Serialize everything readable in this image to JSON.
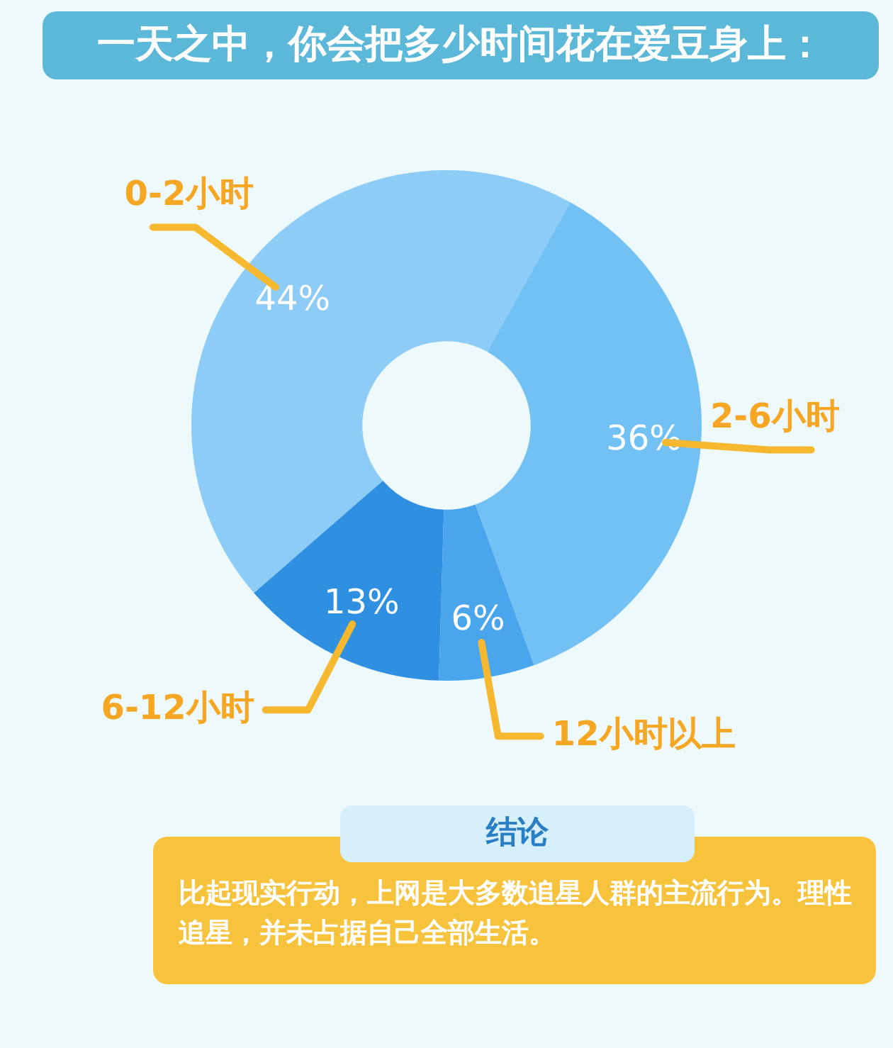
{
  "chart_data": {
    "type": "donut",
    "title": "一天之中，你会把多少时间花在爱豆身上：",
    "categories": [
      "0-2小时",
      "2-6小时",
      "12小时以上",
      "6-12小时"
    ],
    "values": [
      44,
      36,
      6,
      13
    ],
    "value_labels": [
      "44%",
      "36%",
      "6%",
      "13%"
    ],
    "colors": [
      "#8dccf6",
      "#72c1f5",
      "#4aa6ec",
      "#2f8fe0"
    ],
    "legend": false,
    "annotations": [
      "结论",
      "比起现实行动，上网是大多数追星人群的主流行为。理性追星，并未占据自己全部生活。"
    ]
  }
}
